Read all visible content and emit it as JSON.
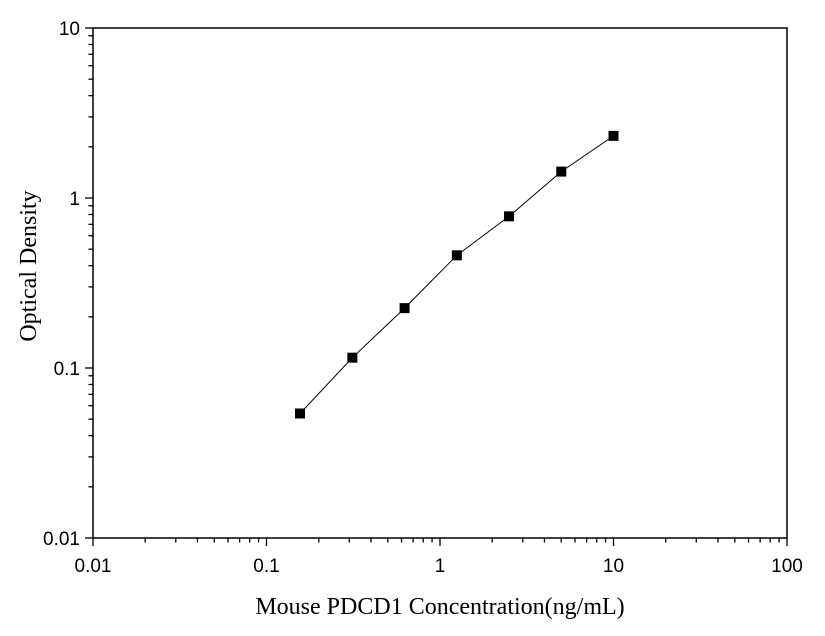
{
  "chart_data": {
    "type": "scatter",
    "title": "",
    "xlabel": "Mouse PDCD1 Concentration(ng/mL)",
    "ylabel": "Optical Density",
    "xscale": "log",
    "yscale": "log",
    "xlim": [
      0.01,
      100
    ],
    "ylim": [
      0.01,
      10
    ],
    "x_ticks": [
      0.01,
      0.1,
      1,
      10,
      100
    ],
    "x_tick_labels": [
      "0.01",
      "0.1",
      "1",
      "10",
      "100"
    ],
    "y_ticks": [
      0.01,
      0.1,
      1,
      10
    ],
    "y_tick_labels": [
      "0.01",
      "0.1",
      "1",
      "10"
    ],
    "grid": false,
    "legend": "none",
    "marker": "square",
    "connect_points": true,
    "series": [
      {
        "x": [
          0.156,
          0.3125,
          0.625,
          1.25,
          2.5,
          5,
          10
        ],
        "y": [
          0.054,
          0.115,
          0.225,
          0.46,
          0.78,
          1.43,
          2.32
        ]
      }
    ]
  },
  "colors": {
    "axis": "#000000",
    "marker": "#000000",
    "line": "#000000"
  }
}
